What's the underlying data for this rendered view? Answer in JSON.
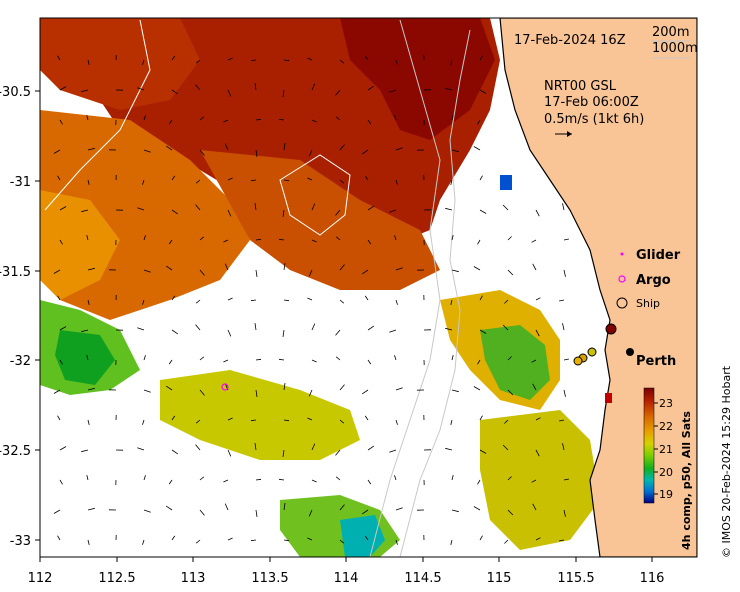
{
  "axes": {
    "x_ticks": [
      "112",
      "112.5",
      "113",
      "113.5",
      "114",
      "114.5",
      "115",
      "115.5",
      "116"
    ],
    "y_ticks": [
      "-30.5",
      "-31",
      "-31.5",
      "-32",
      "-32.5",
      "-33"
    ],
    "lon_range": [
      112,
      116.3
    ],
    "lat_range": [
      -33.1,
      -30.1
    ]
  },
  "header": {
    "datetime": "17-Feb-2024 16Z",
    "contour_200": "200m",
    "contour_1000": "1000m"
  },
  "current_legend": {
    "line1": "NRT00 GSL",
    "line2": "17-Feb 06:00Z",
    "line3": "0.5m/s (1kt 6h)"
  },
  "platform_legend": {
    "glider": "Glider",
    "argo": "Argo",
    "ship": "Ship",
    "glider_color": "#ff00ff",
    "argo_color": "#ff00ff"
  },
  "place_label": "Perth",
  "colorbar": {
    "ticks": [
      "23",
      "22",
      "21",
      "20",
      "19"
    ],
    "label": "4h comp, p50, All Sats",
    "colors": [
      "#7a0000",
      "#b82400",
      "#d86800",
      "#e8a000",
      "#d8d000",
      "#80d000",
      "#10b020",
      "#00b8b0",
      "#0070d0",
      "#000080"
    ]
  },
  "credit": "© IMOS 20-Feb-2024 15:29 Hobart",
  "colors": {
    "land": "#f9c597",
    "coast": "#000000",
    "contour": "#c8c8c8",
    "axis": "#000000"
  }
}
